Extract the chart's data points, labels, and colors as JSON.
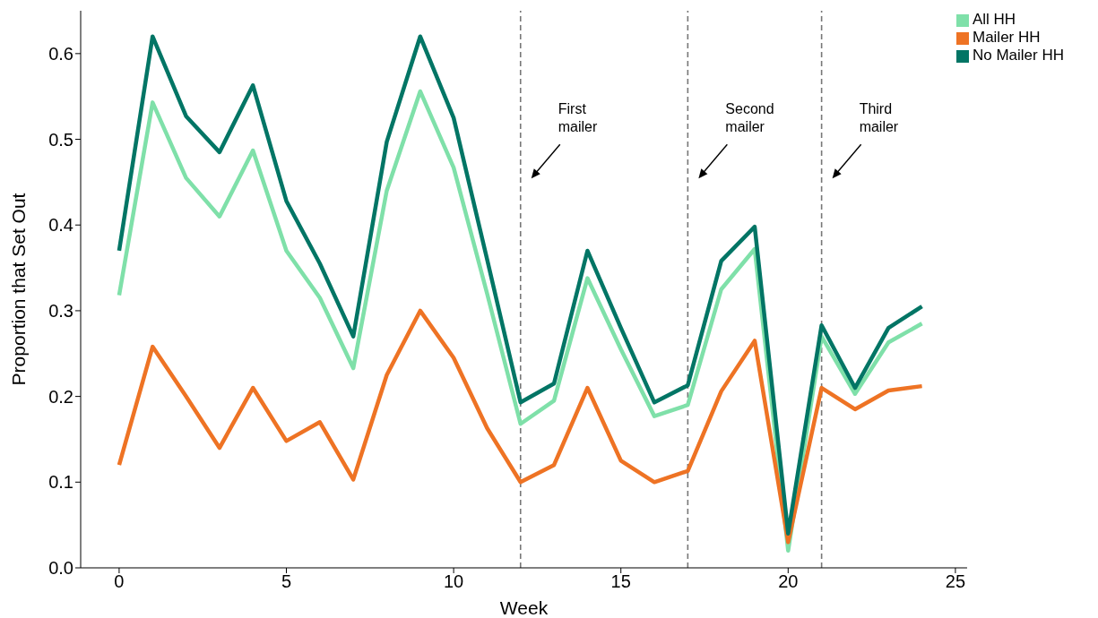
{
  "chart_data": {
    "type": "line",
    "xlabel": "Week",
    "ylabel": "Proportion that Set Out",
    "x": [
      0,
      1,
      2,
      3,
      4,
      5,
      6,
      7,
      8,
      9,
      10,
      11,
      12,
      13,
      14,
      15,
      16,
      17,
      18,
      19,
      20,
      21,
      22,
      23,
      24
    ],
    "series": [
      {
        "name": "All HH",
        "color": "#7fe0a9",
        "values": [
          0.318,
          0.543,
          0.455,
          0.41,
          0.487,
          0.37,
          0.315,
          0.233,
          0.44,
          0.556,
          0.467,
          0.32,
          0.168,
          0.195,
          0.338,
          0.255,
          0.177,
          0.19,
          0.325,
          0.372,
          0.02,
          0.27,
          0.203,
          0.263,
          0.285
        ]
      },
      {
        "name": "Mailer HH",
        "color": "#ee7324",
        "values": [
          0.12,
          0.258,
          0.2,
          0.14,
          0.21,
          0.148,
          0.17,
          0.103,
          0.225,
          0.3,
          0.245,
          0.163,
          0.1,
          0.12,
          0.21,
          0.125,
          0.1,
          0.113,
          0.206,
          0.265,
          0.03,
          0.21,
          0.185,
          0.207,
          0.212
        ]
      },
      {
        "name": "No Mailer HH",
        "color": "#027565",
        "values": [
          0.37,
          0.62,
          0.527,
          0.485,
          0.563,
          0.428,
          0.355,
          0.27,
          0.497,
          0.62,
          0.525,
          0.36,
          0.193,
          0.215,
          0.37,
          0.28,
          0.193,
          0.213,
          0.358,
          0.398,
          0.04,
          0.283,
          0.21,
          0.28,
          0.305
        ]
      }
    ],
    "xlim": [
      -1.15,
      25.35
    ],
    "xticks": [
      0,
      5,
      10,
      15,
      20,
      25
    ],
    "ylim": [
      0,
      0.65
    ],
    "yticks": [
      {
        "value": 0,
        "label": "0.0"
      },
      0.1,
      0.2,
      0.3,
      0.4,
      0.5,
      0.6
    ],
    "ref_lines": [
      {
        "axis": "x",
        "value": 12,
        "color": "#777777",
        "line_style": "dashed",
        "label": "First\nmailer"
      },
      {
        "axis": "x",
        "value": 17,
        "color": "#777777",
        "line_style": "dashed",
        "label": "Second\nmailer"
      },
      {
        "axis": "x",
        "value": 21,
        "color": "#777777",
        "line_style": "dashed",
        "label": "Third\nmailer"
      }
    ],
    "legend": "top right",
    "grid": false,
    "marker": "none",
    "line_style": "solid"
  }
}
